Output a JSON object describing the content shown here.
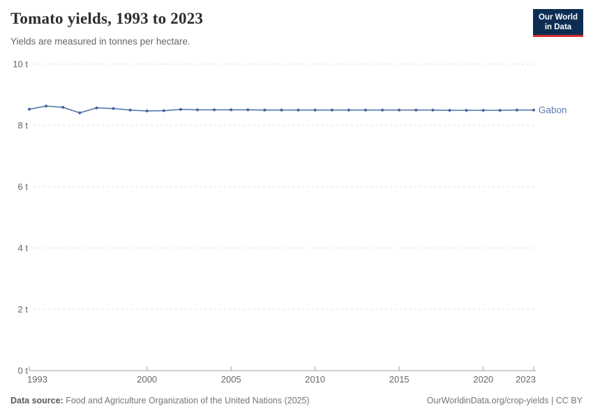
{
  "header": {
    "title": "Tomato yields, 1993 to 2023",
    "subtitle": "Yields are measured in tonnes per hectare."
  },
  "logo": {
    "line1": "Our World",
    "line2": "in Data",
    "bg_color": "#0d2e52",
    "accent_color": "#d42b2f"
  },
  "chart_data": {
    "type": "line",
    "title": "Tomato yields, 1993 to 2023",
    "subtitle": "Yields are measured in tonnes per hectare.",
    "xlabel": "",
    "ylabel": "tonnes per hectare",
    "x": [
      1993,
      1994,
      1995,
      1996,
      1997,
      1998,
      1999,
      2000,
      2001,
      2002,
      2003,
      2004,
      2005,
      2006,
      2007,
      2008,
      2009,
      2010,
      2011,
      2012,
      2013,
      2014,
      2015,
      2016,
      2017,
      2018,
      2019,
      2020,
      2021,
      2022,
      2023
    ],
    "series": [
      {
        "name": "Gabon",
        "color": "#4e6fa5",
        "values": [
          8.53,
          8.63,
          8.59,
          8.41,
          8.57,
          8.55,
          8.5,
          8.47,
          8.48,
          8.52,
          8.51,
          8.51,
          8.51,
          8.51,
          8.5,
          8.5,
          8.5,
          8.5,
          8.5,
          8.5,
          8.5,
          8.5,
          8.5,
          8.5,
          8.5,
          8.49,
          8.49,
          8.49,
          8.49,
          8.5,
          8.5
        ]
      }
    ],
    "xlim": [
      1993,
      2023
    ],
    "ylim": [
      0,
      10
    ],
    "yticks": [
      0,
      2,
      4,
      6,
      8,
      10
    ],
    "ytick_suffix": " t",
    "xticks": [
      1993,
      2000,
      2005,
      2010,
      2015,
      2020,
      2023
    ],
    "grid": true,
    "grid_style": "dashed",
    "legend_position": "end-of-line"
  },
  "footer": {
    "source_label": "Data source:",
    "source_text": " Food and Agriculture Organization of the United Nations (2025)",
    "credit": "OurWorldinData.org/crop-yields | CC BY"
  },
  "colors": {
    "line": "#4e6fa5",
    "dot": "#44639e",
    "series_label": "#5b7cb5",
    "grid": "#dadada",
    "axis": "#9e9e9e",
    "tick_text": "#666666",
    "title_text": "#2d2d2d"
  }
}
